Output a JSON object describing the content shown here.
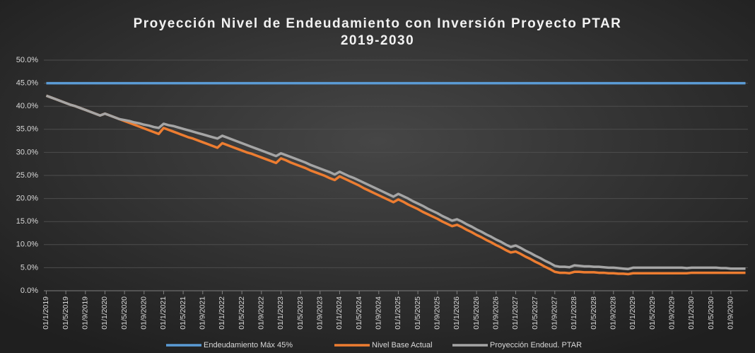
{
  "chart_data": {
    "type": "line",
    "title": "Proyección Nivel de Endeudamiento con Inversión Proyecto PTAR",
    "subtitle": "2019-2030",
    "categories": [
      "01/1/2019",
      null,
      null,
      null,
      "01/5/2019",
      null,
      null,
      null,
      "01/9/2019",
      null,
      null,
      null,
      "01/1/2020",
      null,
      null,
      null,
      "01/5/2020",
      null,
      null,
      null,
      "01/9/2020",
      null,
      null,
      null,
      "01/1/2021",
      null,
      null,
      null,
      "01/5/2021",
      null,
      null,
      null,
      "01/9/2021",
      null,
      null,
      null,
      "01/1/2022",
      null,
      null,
      null,
      "01/5/2022",
      null,
      null,
      null,
      "01/9/2022",
      null,
      null,
      null,
      "01/1/2023",
      null,
      null,
      null,
      "01/5/2023",
      null,
      null,
      null,
      "01/9/2023",
      null,
      null,
      null,
      "01/1/2024",
      null,
      null,
      null,
      "01/5/2024",
      null,
      null,
      null,
      "01/9/2024",
      null,
      null,
      null,
      "01/1/2025",
      null,
      null,
      null,
      "01/5/2025",
      null,
      null,
      null,
      "01/9/2025",
      null,
      null,
      null,
      "01/1/2026",
      null,
      null,
      null,
      "01/5/2026",
      null,
      null,
      null,
      "01/9/2026",
      null,
      null,
      null,
      "01/1/2027",
      null,
      null,
      null,
      "01/5/2027",
      null,
      null,
      null,
      "01/9/2027",
      null,
      null,
      null,
      "01/1/2028",
      null,
      null,
      null,
      "01/5/2028",
      null,
      null,
      null,
      "01/9/2028",
      null,
      null,
      null,
      "01/1/2029",
      null,
      null,
      null,
      "01/5/2029",
      null,
      null,
      null,
      "01/9/2029",
      null,
      null,
      null,
      "01/1/2030",
      null,
      null,
      null,
      "01/5/2030",
      null,
      null,
      null,
      "01/9/2030",
      null,
      null,
      null
    ],
    "series": [
      {
        "name": "Endeudamiento Máx 45%",
        "color": "#5b9bd5",
        "values": [
          45,
          45,
          45,
          45,
          45,
          45,
          45,
          45,
          45,
          45,
          45,
          45,
          45,
          45,
          45,
          45,
          45,
          45,
          45,
          45,
          45,
          45,
          45,
          45,
          45,
          45,
          45,
          45,
          45,
          45,
          45,
          45,
          45,
          45,
          45,
          45,
          45,
          45,
          45,
          45,
          45,
          45,
          45,
          45,
          45,
          45,
          45,
          45,
          45,
          45,
          45,
          45,
          45,
          45,
          45,
          45,
          45,
          45,
          45,
          45,
          45,
          45,
          45,
          45,
          45,
          45,
          45,
          45,
          45,
          45,
          45,
          45,
          45,
          45,
          45,
          45,
          45,
          45,
          45,
          45,
          45,
          45,
          45,
          45,
          45,
          45,
          45,
          45,
          45,
          45,
          45,
          45,
          45,
          45,
          45,
          45,
          45,
          45,
          45,
          45,
          45,
          45,
          45,
          45,
          45,
          45,
          45,
          45,
          45,
          45,
          45,
          45,
          45,
          45,
          45,
          45,
          45,
          45,
          45,
          45,
          45,
          45,
          45,
          45,
          45,
          45,
          45,
          45,
          45,
          45,
          45,
          45,
          45,
          45,
          45,
          45,
          45,
          45,
          45,
          45,
          45,
          45,
          45,
          45
        ]
      },
      {
        "name": "Nivel Base Actual",
        "color": "#ed7d31",
        "values": [
          42.3,
          41.9,
          41.5,
          41.1,
          40.7,
          40.3,
          40.0,
          39.6,
          39.2,
          38.8,
          38.4,
          38.0,
          38.4,
          38.0,
          37.6,
          37.2,
          36.8,
          36.4,
          36.0,
          35.6,
          35.2,
          34.8,
          34.4,
          34.0,
          35.3,
          34.9,
          34.5,
          34.1,
          33.7,
          33.3,
          33.0,
          32.6,
          32.2,
          31.8,
          31.4,
          31.0,
          32.0,
          31.6,
          31.2,
          30.8,
          30.4,
          30.0,
          29.7,
          29.3,
          28.9,
          28.5,
          28.1,
          27.7,
          28.7,
          28.3,
          27.8,
          27.4,
          27.0,
          26.6,
          26.1,
          25.7,
          25.3,
          24.9,
          24.4,
          24.0,
          24.8,
          24.3,
          23.8,
          23.3,
          22.8,
          22.2,
          21.7,
          21.2,
          20.7,
          20.2,
          19.7,
          19.2,
          19.8,
          19.3,
          18.7,
          18.2,
          17.7,
          17.1,
          16.6,
          16.1,
          15.6,
          15.0,
          14.5,
          14.0,
          14.3,
          13.8,
          13.2,
          12.7,
          12.1,
          11.6,
          11.0,
          10.5,
          9.9,
          9.4,
          8.8,
          8.3,
          8.5,
          8.0,
          7.4,
          6.9,
          6.3,
          5.8,
          5.2,
          4.7,
          4.1,
          3.9,
          3.9,
          3.8,
          4.1,
          4.1,
          4.0,
          4.0,
          4.0,
          3.9,
          3.9,
          3.8,
          3.8,
          3.7,
          3.7,
          3.6,
          3.8,
          3.8,
          3.8,
          3.8,
          3.8,
          3.8,
          3.8,
          3.8,
          3.8,
          3.8,
          3.8,
          3.8,
          3.9,
          3.9,
          3.9,
          3.9,
          3.9,
          3.9,
          3.9,
          3.9,
          3.9,
          3.9,
          3.9,
          3.9
        ]
      },
      {
        "name": "Proyección Endeud. PTAR",
        "color": "#a5a5a5",
        "values": [
          42.3,
          41.9,
          41.5,
          41.1,
          40.7,
          40.3,
          40.0,
          39.6,
          39.2,
          38.8,
          38.4,
          38.0,
          38.4,
          38.0,
          37.6,
          37.2,
          37.0,
          36.8,
          36.5,
          36.3,
          36.0,
          35.8,
          35.5,
          35.3,
          36.2,
          35.9,
          35.7,
          35.4,
          35.1,
          34.8,
          34.5,
          34.2,
          33.9,
          33.6,
          33.3,
          33.0,
          33.6,
          33.2,
          32.8,
          32.4,
          32.0,
          31.6,
          31.2,
          30.8,
          30.4,
          30.0,
          29.6,
          29.2,
          29.8,
          29.4,
          29.0,
          28.6,
          28.2,
          27.8,
          27.3,
          26.9,
          26.5,
          26.1,
          25.7,
          25.2,
          25.8,
          25.3,
          24.8,
          24.4,
          23.9,
          23.4,
          22.9,
          22.4,
          21.9,
          21.4,
          20.9,
          20.4,
          21.0,
          20.5,
          20.0,
          19.4,
          18.9,
          18.4,
          17.8,
          17.3,
          16.8,
          16.2,
          15.7,
          15.2,
          15.5,
          15.0,
          14.4,
          13.9,
          13.3,
          12.8,
          12.2,
          11.7,
          11.1,
          10.6,
          10.0,
          9.5,
          9.8,
          9.3,
          8.7,
          8.2,
          7.6,
          7.1,
          6.5,
          6.0,
          5.4,
          5.2,
          5.2,
          5.1,
          5.5,
          5.4,
          5.3,
          5.3,
          5.2,
          5.2,
          5.1,
          5.0,
          5.0,
          4.9,
          4.8,
          4.7,
          5.0,
          5.0,
          5.0,
          5.0,
          5.0,
          5.0,
          5.0,
          5.0,
          5.0,
          5.0,
          5.0,
          4.9,
          5.0,
          5.0,
          5.0,
          5.0,
          5.0,
          5.0,
          4.9,
          4.9,
          4.8,
          4.8,
          4.8,
          4.8
        ]
      }
    ],
    "ylim": [
      0,
      50
    ],
    "yticks": [
      {
        "value": 0,
        "label": "0.0%"
      },
      {
        "value": 5,
        "label": "5.0%"
      },
      {
        "value": 10,
        "label": "10.0%"
      },
      {
        "value": 15,
        "label": "15.0%"
      },
      {
        "value": 20,
        "label": "20.0%"
      },
      {
        "value": 25,
        "label": "25.0%"
      },
      {
        "value": 30,
        "label": "30.0%"
      },
      {
        "value": 35,
        "label": "35.0%"
      },
      {
        "value": 40,
        "label": "40.0%"
      },
      {
        "value": 45,
        "label": "45.0%"
      },
      {
        "value": 50,
        "label": "50.0%"
      }
    ],
    "grid": true,
    "legend": "bottom"
  }
}
